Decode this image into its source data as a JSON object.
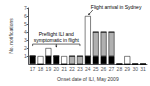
{
  "chart_data": {
    "type": "bar",
    "stacked": true,
    "categories": [
      17,
      18,
      19,
      20,
      21,
      22,
      23,
      24,
      25,
      26,
      27,
      28,
      29,
      30,
      31
    ],
    "series": [
      {
        "color": "#000000",
        "values": [
          1,
          0,
          1,
          1,
          0,
          0,
          0,
          1,
          1,
          1,
          1,
          0,
          0,
          0,
          0
        ]
      },
      {
        "color": "#b0b0b0",
        "values": [
          0,
          0,
          0,
          0,
          0,
          1,
          1,
          0,
          3,
          3,
          3,
          0,
          0,
          0,
          0
        ]
      },
      {
        "color": "#ffffff",
        "values": [
          0,
          1,
          1,
          0,
          1,
          0,
          0,
          5,
          0,
          0,
          0,
          0,
          1,
          0,
          0
        ]
      }
    ],
    "xlabel": "Onset date of ILI, May 2009",
    "ylabel": "No. notifications",
    "ylim": [
      0,
      7
    ],
    "yticks": [
      1,
      2,
      3,
      4,
      5,
      6,
      7
    ],
    "grid": false,
    "annotations": [
      {
        "text": "Flight arrival in Sydney",
        "category": 24
      },
      {
        "text": "Preflight ILI and\nsymptomatic in flight",
        "categories": [
          17,
          23
        ]
      }
    ]
  }
}
